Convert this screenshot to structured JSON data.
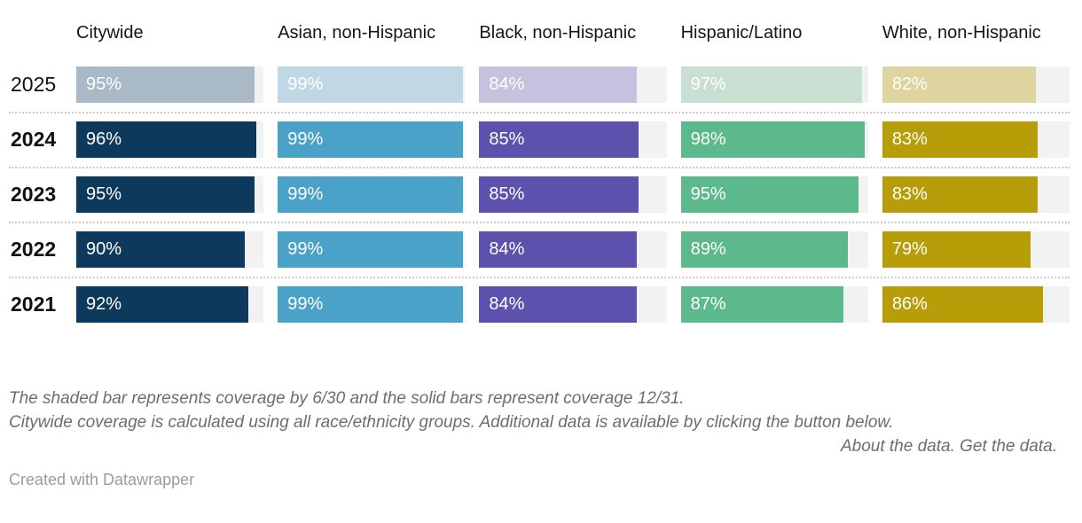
{
  "chart_data": {
    "type": "bar",
    "orientation": "horizontal",
    "unit": "%",
    "xlim": [
      0,
      100
    ],
    "categories": [
      "Citywide",
      "Asian, non-Hispanic",
      "Black, non-Hispanic",
      "Hispanic/Latino",
      "White, non-Hispanic"
    ],
    "rows": [
      {
        "year": "2025",
        "style": "shaded",
        "values": [
          95,
          99,
          84,
          97,
          82
        ]
      },
      {
        "year": "2024",
        "style": "solid",
        "values": [
          96,
          99,
          85,
          98,
          83
        ]
      },
      {
        "year": "2023",
        "style": "solid",
        "values": [
          95,
          99,
          85,
          95,
          83
        ]
      },
      {
        "year": "2022",
        "style": "solid",
        "values": [
          90,
          99,
          84,
          89,
          79
        ]
      },
      {
        "year": "2021",
        "style": "solid",
        "values": [
          92,
          99,
          84,
          87,
          86
        ]
      }
    ],
    "palette": {
      "solid": [
        "#0d3a5c",
        "#4aa2c8",
        "#5c52ae",
        "#5bb98b",
        "#b79d07"
      ],
      "shaded": [
        "#a9bac6",
        "#c0d8e6",
        "#c6c1de",
        "#c8dfd1",
        "#ddd4a0"
      ],
      "track": "#f2f2f2"
    },
    "legend_note": "The shaded bar represents coverage by 6/30 and the solid bars represent coverage 12/31."
  },
  "footer": {
    "note_line1": "The shaded bar represents coverage by 6/30 and the solid bars represent coverage 12/31.",
    "note_line2": "Citywide coverage is calculated using all race/ethnicity groups. Additional data is available by clicking the button below.",
    "about_link": "About the data.",
    "get_link": "Get the data.",
    "attribution": "Created with Datawrapper"
  }
}
